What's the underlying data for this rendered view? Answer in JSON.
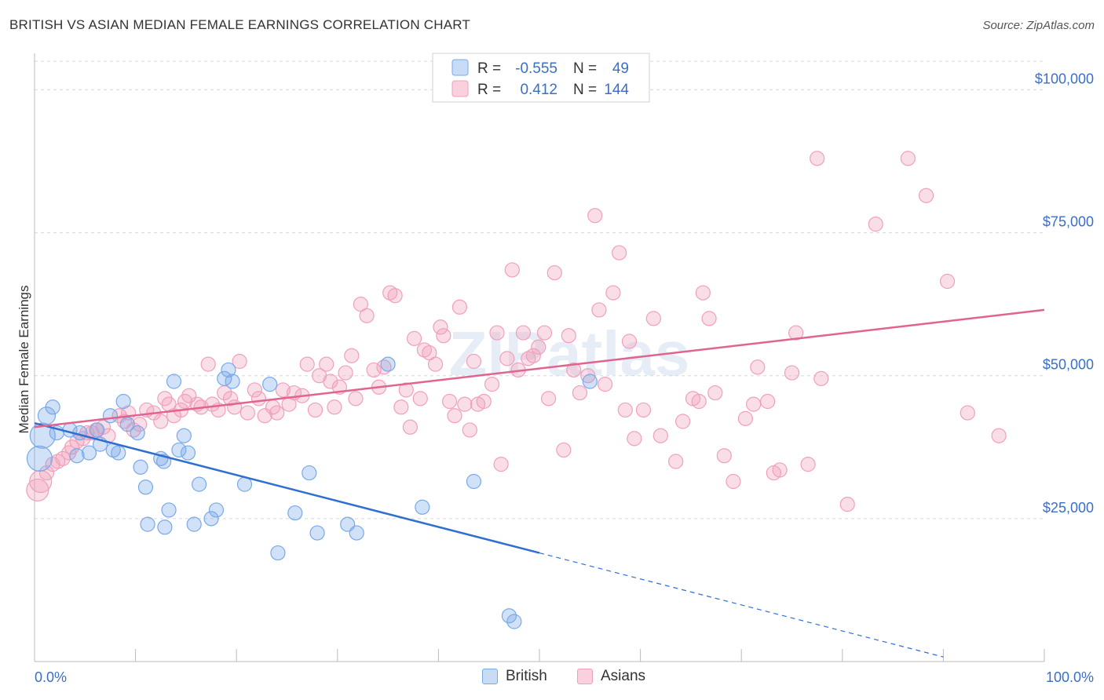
{
  "title": "BRITISH VS ASIAN MEDIAN FEMALE EARNINGS CORRELATION CHART",
  "source": "Source: ZipAtlas.com",
  "watermark": "ZIPatlas",
  "colors": {
    "british": "#7aa9e8",
    "british_line": "#2f6fd0",
    "asians": "#f0a0bb",
    "asians_line": "#e0648e",
    "grid": "#d8d8d8",
    "tick_label": "#3a6fc7"
  },
  "legend": {
    "rows": [
      {
        "r_label": "R =",
        "r_value": "-0.555",
        "n_label": "N =",
        "n_value": "49"
      },
      {
        "r_label": "R =",
        "r_value": "0.412",
        "n_label": "N =",
        "n_value": "144"
      }
    ]
  },
  "bottom_legend": {
    "british": "British",
    "asians": "Asians"
  },
  "chart_data": {
    "type": "scatter",
    "title": "BRITISH VS ASIAN MEDIAN FEMALE EARNINGS CORRELATION CHART",
    "xlabel": "",
    "ylabel": "Median Female Earnings",
    "xlim": [
      0,
      100
    ],
    "ylim": [
      0,
      105000
    ],
    "x_tick_labels": [
      "0.0%",
      "100.0%"
    ],
    "y_ticks": [
      25000,
      50000,
      75000,
      100000
    ],
    "y_tick_labels": [
      "$25,000",
      "$50,000",
      "$75,000",
      "$100,000"
    ],
    "grid": "horizontal dashed",
    "legend_position": "top-center",
    "series": [
      {
        "name": "British",
        "r": -0.555,
        "n": 49,
        "trend": {
          "x": [
            0,
            50
          ],
          "y": [
            41700,
            19000
          ],
          "dashed_extension_to": [
            90,
            800
          ]
        },
        "points": [
          [
            0.5,
            35500
          ],
          [
            0.8,
            39500
          ],
          [
            1.2,
            43000
          ],
          [
            1.8,
            44500
          ],
          [
            2.2,
            40000
          ],
          [
            3.5,
            40500
          ],
          [
            4.2,
            36000
          ],
          [
            4.5,
            40000
          ],
          [
            5.4,
            36500
          ],
          [
            6.2,
            40500
          ],
          [
            6.5,
            38000
          ],
          [
            7.5,
            43000
          ],
          [
            7.8,
            37000
          ],
          [
            8.3,
            36500
          ],
          [
            8.8,
            45500
          ],
          [
            9.2,
            41500
          ],
          [
            10.2,
            40000
          ],
          [
            10.5,
            34000
          ],
          [
            11,
            30500
          ],
          [
            11.2,
            24000
          ],
          [
            12.5,
            35500
          ],
          [
            12.8,
            35000
          ],
          [
            12.9,
            23500
          ],
          [
            13.3,
            26500
          ],
          [
            13.8,
            49000
          ],
          [
            14.3,
            37000
          ],
          [
            14.8,
            39500
          ],
          [
            15.2,
            36500
          ],
          [
            15.8,
            24000
          ],
          [
            16.3,
            31000
          ],
          [
            17.5,
            25000
          ],
          [
            18,
            26500
          ],
          [
            18.8,
            49500
          ],
          [
            19.2,
            51000
          ],
          [
            19.6,
            49000
          ],
          [
            20.8,
            31000
          ],
          [
            23.3,
            48500
          ],
          [
            24.1,
            19000
          ],
          [
            25.8,
            26000
          ],
          [
            27.2,
            33000
          ],
          [
            28,
            22500
          ],
          [
            31,
            24000
          ],
          [
            31.9,
            22500
          ],
          [
            38.4,
            27000
          ],
          [
            43.5,
            31500
          ],
          [
            47,
            8000
          ],
          [
            47.5,
            7000
          ],
          [
            55,
            49000
          ],
          [
            35,
            52000
          ]
        ]
      },
      {
        "name": "Asians",
        "r": 0.412,
        "n": 144,
        "trend": {
          "x": [
            0,
            100
          ],
          "y": [
            41000,
            61500
          ]
        },
        "points": [
          [
            0.3,
            30000
          ],
          [
            0.6,
            31500
          ],
          [
            1.2,
            33000
          ],
          [
            1.8,
            34500
          ],
          [
            2.3,
            35000
          ],
          [
            2.8,
            35500
          ],
          [
            3.4,
            36500
          ],
          [
            3.7,
            37500
          ],
          [
            4.2,
            38500
          ],
          [
            4.8,
            39000
          ],
          [
            5.2,
            40000
          ],
          [
            5.7,
            40000
          ],
          [
            6.1,
            40500
          ],
          [
            6.8,
            41000
          ],
          [
            7.3,
            39500
          ],
          [
            8.4,
            43000
          ],
          [
            8.9,
            42000
          ],
          [
            9.3,
            43500
          ],
          [
            9.8,
            40500
          ],
          [
            10.4,
            41500
          ],
          [
            11.1,
            44000
          ],
          [
            11.8,
            43500
          ],
          [
            12.5,
            42000
          ],
          [
            12.9,
            46000
          ],
          [
            13.3,
            45000
          ],
          [
            13.8,
            43000
          ],
          [
            14.5,
            44000
          ],
          [
            14.9,
            45500
          ],
          [
            15.3,
            46500
          ],
          [
            16.1,
            45000
          ],
          [
            16.5,
            44500
          ],
          [
            17.2,
            52000
          ],
          [
            17.6,
            45000
          ],
          [
            18.2,
            44000
          ],
          [
            18.8,
            47000
          ],
          [
            19.4,
            46000
          ],
          [
            19.8,
            44500
          ],
          [
            20.3,
            52500
          ],
          [
            21.1,
            43500
          ],
          [
            21.8,
            47500
          ],
          [
            22.2,
            46000
          ],
          [
            22.8,
            43000
          ],
          [
            23.6,
            44500
          ],
          [
            24,
            43500
          ],
          [
            24.6,
            47500
          ],
          [
            25.2,
            45000
          ],
          [
            25.7,
            47000
          ],
          [
            26.5,
            46500
          ],
          [
            27,
            52000
          ],
          [
            27.8,
            44000
          ],
          [
            28.2,
            50000
          ],
          [
            28.9,
            52000
          ],
          [
            29.3,
            49000
          ],
          [
            29.7,
            44500
          ],
          [
            30.2,
            48000
          ],
          [
            30.8,
            50500
          ],
          [
            31.4,
            53500
          ],
          [
            31.8,
            46000
          ],
          [
            32.3,
            62500
          ],
          [
            32.9,
            60500
          ],
          [
            33.6,
            51000
          ],
          [
            34.1,
            48000
          ],
          [
            34.6,
            51500
          ],
          [
            35.2,
            64500
          ],
          [
            35.7,
            64000
          ],
          [
            36.3,
            44500
          ],
          [
            36.8,
            47500
          ],
          [
            37.2,
            41000
          ],
          [
            37.6,
            56500
          ],
          [
            38.2,
            46000
          ],
          [
            38.6,
            54500
          ],
          [
            39.1,
            54000
          ],
          [
            39.7,
            52000
          ],
          [
            40.2,
            58500
          ],
          [
            40.5,
            57000
          ],
          [
            41.1,
            45500
          ],
          [
            41.6,
            43000
          ],
          [
            42.1,
            62000
          ],
          [
            42.6,
            45000
          ],
          [
            43.1,
            40500
          ],
          [
            43.5,
            52500
          ],
          [
            43.9,
            45000
          ],
          [
            44.5,
            45500
          ],
          [
            45.3,
            48500
          ],
          [
            45.8,
            57500
          ],
          [
            46.2,
            34500
          ],
          [
            46.8,
            53000
          ],
          [
            47.3,
            68500
          ],
          [
            47.9,
            51000
          ],
          [
            48.4,
            57500
          ],
          [
            48.9,
            53000
          ],
          [
            49.4,
            53500
          ],
          [
            49.9,
            55000
          ],
          [
            50.5,
            57500
          ],
          [
            50.9,
            46000
          ],
          [
            51.5,
            68000
          ],
          [
            52.4,
            37000
          ],
          [
            52.9,
            57000
          ],
          [
            53.4,
            51000
          ],
          [
            54,
            47000
          ],
          [
            54.8,
            50000
          ],
          [
            55.5,
            78000
          ],
          [
            55.9,
            61500
          ],
          [
            56.5,
            48500
          ],
          [
            57.3,
            64500
          ],
          [
            57.9,
            71500
          ],
          [
            58.5,
            44000
          ],
          [
            58.9,
            56000
          ],
          [
            59.4,
            39000
          ],
          [
            60.3,
            44000
          ],
          [
            61.3,
            60000
          ],
          [
            62,
            39500
          ],
          [
            63.5,
            35000
          ],
          [
            64.2,
            42000
          ],
          [
            65.2,
            46000
          ],
          [
            65.8,
            45500
          ],
          [
            66.2,
            64500
          ],
          [
            66.8,
            60000
          ],
          [
            67.4,
            47000
          ],
          [
            68.3,
            36000
          ],
          [
            69.2,
            31500
          ],
          [
            70.4,
            42500
          ],
          [
            71.2,
            45000
          ],
          [
            71.6,
            51500
          ],
          [
            72.6,
            45500
          ],
          [
            73.2,
            33000
          ],
          [
            73.8,
            33500
          ],
          [
            75,
            50500
          ],
          [
            75.4,
            57500
          ],
          [
            76.6,
            34500
          ],
          [
            77.5,
            88000
          ],
          [
            77.9,
            49500
          ],
          [
            80.5,
            27500
          ],
          [
            83.3,
            76500
          ],
          [
            86.5,
            88000
          ],
          [
            88.3,
            81500
          ],
          [
            95.5,
            39500
          ],
          [
            92.4,
            43500
          ],
          [
            90.4,
            66500
          ]
        ]
      }
    ]
  }
}
